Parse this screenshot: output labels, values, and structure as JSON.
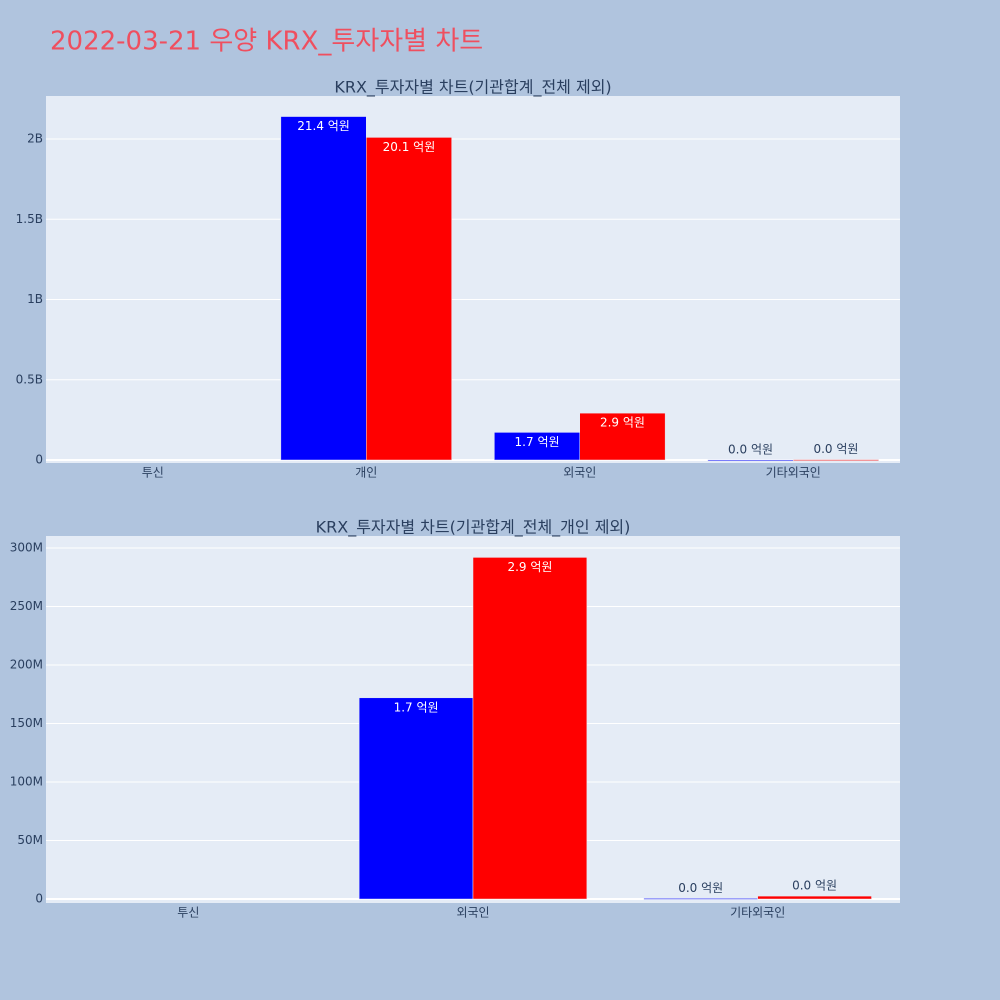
{
  "title": "2022-03-21 우양 KRX_투자자별 차트",
  "chart_data": [
    {
      "type": "bar",
      "title": "KRX_투자자별 차트(기관합계_전체 제외)",
      "categories": [
        "투신",
        "개인",
        "외국인",
        "기타외국인"
      ],
      "series": [
        {
          "color": "#0000ff",
          "values": [
            null,
            2140000000,
            172000000,
            500000
          ],
          "value_labels": [
            null,
            "21.4 억원",
            "1.7 억원",
            "0.0 억원"
          ]
        },
        {
          "color": "#ff0000",
          "values": [
            null,
            2010000000,
            292000000,
            2500000
          ],
          "value_labels": [
            null,
            "20.1 억원",
            "2.9 억원",
            "0.0 억원"
          ]
        }
      ],
      "ylim": [
        -18700000,
        2268000000
      ],
      "yticks": [
        0,
        {
          "value": 500000000,
          "label": "0.5B"
        },
        {
          "value": 1000000000,
          "label": "1B"
        },
        {
          "value": 1500000000,
          "label": "1.5B"
        },
        {
          "value": 2000000000,
          "label": "2B"
        }
      ],
      "grid": true
    },
    {
      "type": "bar",
      "title": "KRX_투자자별 차트(기관합계_전체_개인 제외)",
      "categories": [
        "투신",
        "외국인",
        "기타외국인"
      ],
      "series": [
        {
          "color": "#0000ff",
          "values": [
            null,
            172000000,
            500000
          ],
          "value_labels": [
            null,
            "1.7 억원",
            "0.0 억원"
          ]
        },
        {
          "color": "#ff0000",
          "values": [
            null,
            292000000,
            2500000
          ],
          "value_labels": [
            null,
            "2.9 억원",
            "0.0 억원"
          ]
        }
      ],
      "ylim": [
        -3400000,
        310300000
      ],
      "yticks": [
        0,
        {
          "value": 50000000,
          "label": "50M"
        },
        {
          "value": 100000000,
          "label": "100M"
        },
        {
          "value": 150000000,
          "label": "150M"
        },
        {
          "value": 200000000,
          "label": "200M"
        },
        {
          "value": 250000000,
          "label": "250M"
        },
        {
          "value": 300000000,
          "label": "300M"
        }
      ],
      "grid": true
    }
  ]
}
